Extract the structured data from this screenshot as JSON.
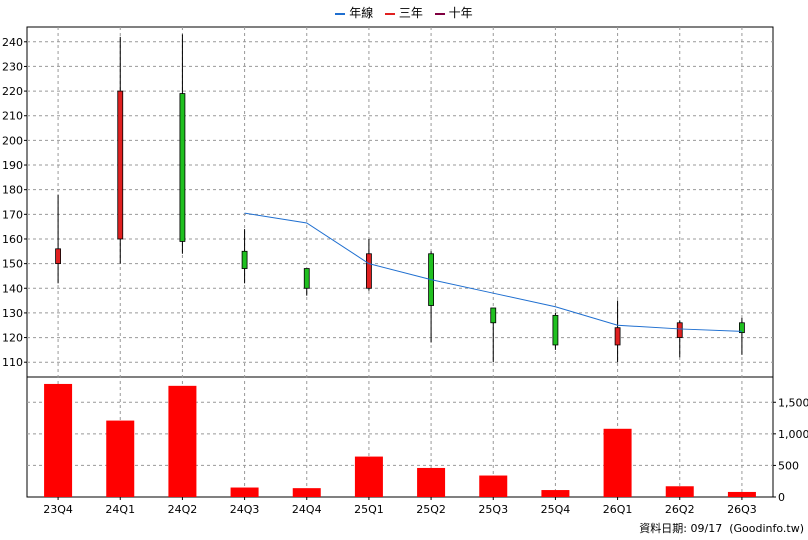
{
  "legend": {
    "items": [
      {
        "label": "年線",
        "color": "#1f6fd0"
      },
      {
        "label": "三年",
        "color": "#e02020"
      },
      {
        "label": "十年",
        "color": "#800040"
      }
    ]
  },
  "footer": {
    "date_text": "資料日期: 09/17  (Goodinfo.tw)"
  },
  "chart_data": [
    {
      "type": "candlestick",
      "categories": [
        "23Q4",
        "24Q1",
        "24Q2",
        "24Q3",
        "24Q4",
        "25Q1",
        "25Q2",
        "25Q3",
        "25Q4",
        "26Q1",
        "26Q2",
        "26Q3"
      ],
      "ylim": [
        104,
        246
      ],
      "yticks": [
        110,
        120,
        130,
        140,
        150,
        160,
        170,
        180,
        190,
        200,
        210,
        220,
        230,
        240
      ],
      "grid": true,
      "up_color": "#e02020",
      "down_color": "#20c020",
      "candles": [
        {
          "open": 150,
          "close": 156,
          "high": 178,
          "low": 142
        },
        {
          "open": 160,
          "close": 220,
          "high": 242,
          "low": 150
        },
        {
          "open": 219,
          "close": 159,
          "high": 243,
          "low": 154
        },
        {
          "open": 155,
          "close": 148,
          "high": 164,
          "low": 142
        },
        {
          "open": 148,
          "close": 140,
          "high": 148,
          "low": 137
        },
        {
          "open": 140,
          "close": 154,
          "high": 160,
          "low": 139
        },
        {
          "open": 154,
          "close": 133,
          "high": 155,
          "low": 118
        },
        {
          "open": 132,
          "close": 126,
          "high": 132,
          "low": 110
        },
        {
          "open": 129,
          "close": 117,
          "high": 130,
          "low": 115
        },
        {
          "open": 117,
          "close": 124,
          "high": 135,
          "low": 110
        },
        {
          "open": 120,
          "close": 126,
          "high": 127,
          "low": 112
        },
        {
          "open": 126,
          "close": 122,
          "high": 128,
          "low": 113
        }
      ],
      "series": [
        {
          "name": "年線",
          "color": "#1f6fd0",
          "values": [
            null,
            null,
            null,
            170.5,
            166.5,
            150,
            143.5,
            138,
            132.5,
            125,
            123.5,
            122.5
          ]
        }
      ]
    },
    {
      "type": "bar",
      "categories": [
        "23Q4",
        "24Q1",
        "24Q2",
        "24Q3",
        "24Q4",
        "25Q1",
        "25Q2",
        "25Q3",
        "25Q4",
        "26Q1",
        "26Q2",
        "26Q3"
      ],
      "values": [
        1790,
        1210,
        1760,
        150,
        140,
        640,
        460,
        340,
        110,
        1080,
        170,
        80
      ],
      "ylim": [
        0,
        1900
      ],
      "yticks": [
        0,
        500,
        1000,
        1500
      ],
      "ytick_labels": [
        "0",
        "500",
        "1,000",
        "1,500"
      ],
      "color": "#ff0000",
      "grid": true
    }
  ]
}
